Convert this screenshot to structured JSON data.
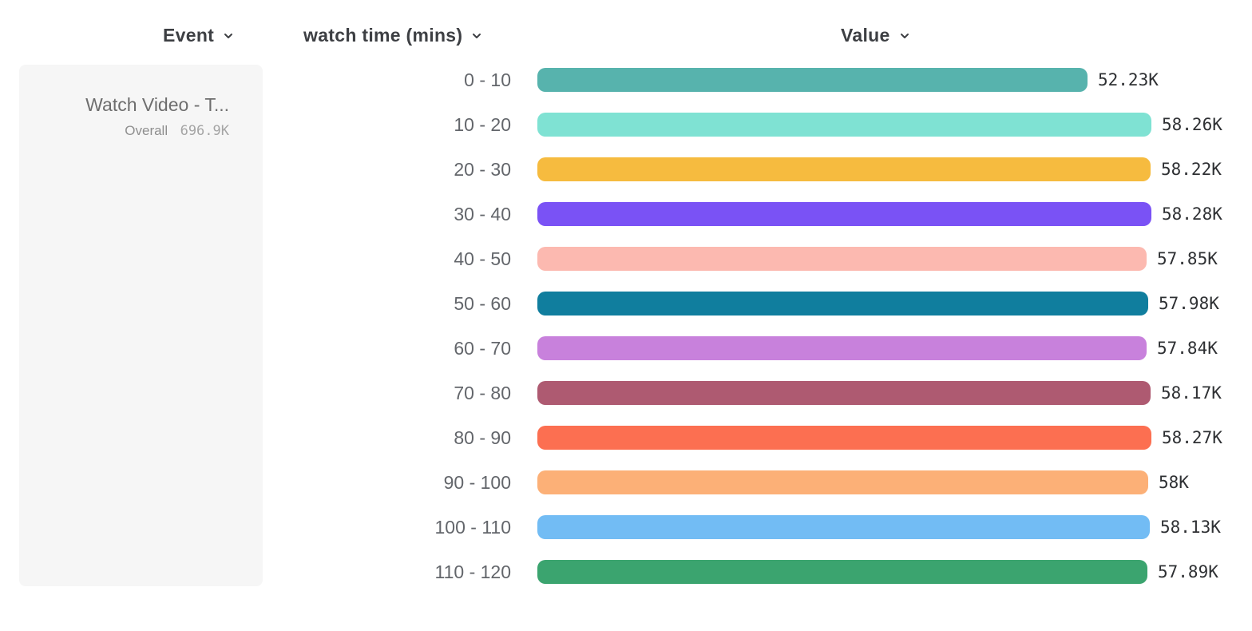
{
  "headers": {
    "event": "Event",
    "watch_time": "watch time (mins)",
    "value": "Value"
  },
  "event_panel": {
    "title": "Watch Video - T...",
    "overall_label": "Overall",
    "overall_value": "696.9K"
  },
  "ui_colors": {
    "panel_bg": "#f6f6f6",
    "header_text": "#3d3f43",
    "category_text": "#63666b",
    "value_text": "#2e3033",
    "event_title_text": "#6e6e6e"
  },
  "chart_data": {
    "type": "bar",
    "orientation": "horizontal",
    "title": "",
    "xlabel": "Value",
    "ylabel": "watch time (mins)",
    "categories": [
      "0 - 10",
      "10 - 20",
      "20 - 30",
      "30 - 40",
      "40 - 50",
      "50 - 60",
      "60 - 70",
      "70 - 80",
      "80 - 90",
      "90 - 100",
      "100 - 110",
      "110 - 120"
    ],
    "values": [
      52230,
      58260,
      58220,
      58280,
      57850,
      57980,
      57840,
      58170,
      58270,
      58000,
      58130,
      57890
    ],
    "value_labels": [
      "52.23K",
      "58.26K",
      "58.22K",
      "58.28K",
      "57.85K",
      "57.98K",
      "57.84K",
      "58.17K",
      "58.27K",
      "58K",
      "58.13K",
      "57.89K"
    ],
    "bar_colors": [
      "#57b3ad",
      "#7fe2d3",
      "#f6bb3f",
      "#7a52f5",
      "#fcb9b0",
      "#107e9e",
      "#c881dc",
      "#ae5a71",
      "#fc6f51",
      "#fcb077",
      "#72bcf4",
      "#3ba46f"
    ],
    "xlim": [
      0,
      58280
    ],
    "grid": false,
    "legend": "none",
    "overall_total": "696.9K"
  }
}
